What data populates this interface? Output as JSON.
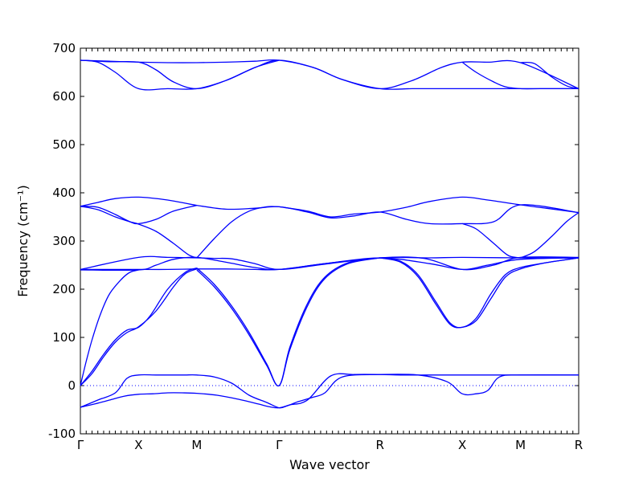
{
  "chart_data": {
    "type": "line",
    "title": "",
    "xlabel": "Wave vector",
    "ylabel": "Frequency (cm⁻¹)",
    "ylim": [
      -100,
      700
    ],
    "yticks": [
      -100,
      0,
      100,
      200,
      300,
      400,
      500,
      600,
      700
    ],
    "x_ticks": [
      {
        "label": "Γ",
        "pos": 0
      },
      {
        "label": "X",
        "pos": 1
      },
      {
        "label": "M",
        "pos": 2
      },
      {
        "label": "Γ",
        "pos": 3.414
      },
      {
        "label": "R",
        "pos": 5.146
      },
      {
        "label": "X",
        "pos": 6.56
      },
      {
        "label": "M",
        "pos": 7.56
      },
      {
        "label": "R",
        "pos": 8.56
      }
    ],
    "reference_line": {
      "y": 0,
      "style": "dotted"
    },
    "series_color": "#0000ff",
    "branches": [
      {
        "x": [
          0,
          0.25,
          0.5,
          0.75,
          1,
          1.25,
          1.5,
          1.75,
          2,
          2.35,
          2.7,
          3.05,
          3.25,
          3.414,
          3.6,
          3.9,
          4.3,
          4.7,
          5.146,
          5.5,
          6,
          6.3,
          6.56,
          6.8,
          7.05,
          7.25,
          7.56,
          7.8,
          8.1,
          8.35,
          8.56
        ],
        "y": [
          -45,
          -38,
          -30,
          -22,
          -18,
          -17,
          -15,
          -15,
          -16,
          -20,
          -28,
          -38,
          -44,
          -46,
          -40,
          -30,
          20,
          23,
          23,
          22,
          22,
          22,
          22,
          22,
          22,
          22,
          22,
          22,
          22,
          22,
          22
        ]
      },
      {
        "x": [
          0,
          0.3,
          0.6,
          0.8,
          1,
          1.3,
          1.6,
          1.8,
          2,
          2.3,
          2.6,
          2.9,
          3.2,
          3.414,
          3.55,
          3.75,
          4,
          4.2,
          4.5,
          5.146,
          5.8,
          6.3,
          6.56,
          6.8,
          7.0,
          7.2,
          7.56,
          8.56
        ],
        "y": [
          -45,
          -30,
          -15,
          15,
          22,
          22,
          22,
          22,
          22,
          18,
          5,
          -20,
          -35,
          -46,
          -42,
          -33,
          -24,
          -15,
          18,
          23,
          22,
          8,
          -17,
          -17,
          -10,
          18,
          22,
          22
        ]
      },
      {
        "x": [
          0,
          0.1,
          0.2,
          0.35,
          0.5,
          0.7,
          0.85,
          1
        ],
        "y": [
          0,
          50,
          95,
          150,
          190,
          220,
          235,
          240
        ]
      },
      {
        "x": [
          0,
          0.2,
          0.4,
          0.6,
          0.8,
          1,
          1.2,
          1.5,
          1.8,
          2
        ],
        "y": [
          0,
          30,
          65,
          95,
          115,
          121,
          145,
          200,
          235,
          244
        ]
      },
      {
        "x": [
          0,
          0.2,
          0.4,
          0.6,
          0.8,
          1,
          1.3,
          1.6,
          1.8,
          2
        ],
        "y": [
          0,
          25,
          60,
          90,
          110,
          122,
          155,
          205,
          232,
          242
        ]
      },
      {
        "x": [
          2,
          2.3,
          2.6,
          2.9,
          3.2,
          3.414,
          3.6,
          3.9,
          4.2,
          4.6,
          5.146
        ],
        "y": [
          244,
          210,
          165,
          110,
          45,
          0,
          80,
          170,
          225,
          255,
          265
        ]
      },
      {
        "x": [
          2,
          2.3,
          2.6,
          2.9,
          3.2,
          3.414,
          3.6,
          3.9,
          4.2,
          4.6,
          5.146
        ],
        "y": [
          240,
          205,
          160,
          105,
          42,
          0,
          75,
          165,
          222,
          253,
          265
        ]
      },
      {
        "x": [
          5.146,
          5.5,
          5.8,
          6.1,
          6.35,
          6.56,
          6.8,
          7.05,
          7.3,
          7.56,
          8.0,
          8.56
        ],
        "y": [
          265,
          258,
          230,
          175,
          130,
          121,
          140,
          190,
          230,
          245,
          255,
          265
        ]
      },
      {
        "x": [
          5.146,
          5.5,
          5.8,
          6.1,
          6.35,
          6.56,
          6.8,
          7.05,
          7.3,
          7.56,
          8.0,
          8.56
        ],
        "y": [
          265,
          256,
          226,
          170,
          127,
          121,
          135,
          180,
          225,
          242,
          255,
          265
        ]
      },
      {
        "x": [
          0,
          1,
          1.3,
          1.6,
          2,
          2.5,
          3,
          3.414,
          4.2,
          5.146,
          6,
          6.56,
          7.56,
          8.56
        ],
        "y": [
          240,
          240,
          250,
          262,
          266,
          256,
          245,
          241,
          253,
          265,
          265,
          266,
          265,
          265
        ]
      },
      {
        "x": [
          0,
          1,
          1.5,
          2,
          2.5,
          3,
          3.414,
          4.2,
          5.146,
          6,
          6.56,
          7,
          7.56,
          8.56
        ],
        "y": [
          241,
          241,
          241,
          242,
          242,
          241,
          241,
          253,
          265,
          253,
          241,
          250,
          262,
          265
        ]
      },
      {
        "x": [
          0,
          1,
          1.5,
          2,
          2.3,
          2.6,
          3,
          3.414,
          4.2,
          5.146,
          5.9,
          6.56,
          7.1,
          7.56,
          8.56
        ],
        "y": [
          241,
          266,
          266,
          265,
          264,
          263,
          253,
          241,
          252,
          265,
          264,
          241,
          250,
          266,
          266
        ]
      },
      {
        "x": [
          0,
          0.3,
          0.6,
          0.85,
          1,
          1.3,
          1.6,
          1.85,
          2
        ],
        "y": [
          372,
          365,
          350,
          340,
          335,
          320,
          295,
          272,
          265
        ]
      },
      {
        "x": [
          0,
          0.3,
          0.6,
          0.85,
          1,
          1.3,
          1.6,
          2
        ],
        "y": [
          372,
          370,
          355,
          340,
          336,
          345,
          362,
          374
        ]
      },
      {
        "x": [
          0,
          0.3,
          0.6,
          1,
          1.5,
          2,
          2.5,
          3,
          3.414,
          3.9,
          4.3,
          4.7,
          5.146,
          5.6,
          6,
          6.56,
          7.1,
          7.56,
          8.56
        ],
        "y": [
          372,
          380,
          388,
          391,
          385,
          374,
          366,
          368,
          371,
          360,
          348,
          352,
          360,
          345,
          336,
          336,
          340,
          375,
          359
        ]
      },
      {
        "x": [
          2,
          2.3,
          2.6,
          2.9,
          3.2,
          3.414
        ],
        "y": [
          265,
          305,
          340,
          362,
          371,
          371
        ]
      },
      {
        "x": [
          3.414,
          3.9,
          4.3,
          4.7,
          5.146,
          5.6,
          6,
          6.56,
          7,
          7.56,
          8,
          8.56
        ],
        "y": [
          371,
          362,
          350,
          356,
          360,
          370,
          382,
          391,
          385,
          375,
          368,
          359
        ]
      },
      {
        "x": [
          6.56,
          6.8,
          7.1,
          7.35,
          7.56
        ],
        "y": [
          336,
          325,
          295,
          270,
          265
        ]
      },
      {
        "x": [
          7.56,
          7.8,
          8.1,
          8.35,
          8.56
        ],
        "y": [
          265,
          278,
          310,
          340,
          359
        ]
      },
      {
        "x": [
          0,
          0.5,
          1,
          1.5,
          2,
          2.5,
          3,
          3.414,
          4,
          4.5,
          5.146,
          5.7,
          6.2,
          6.56,
          7.0,
          7.56,
          8.56
        ],
        "y": [
          675,
          673,
          671,
          670,
          670,
          671,
          673,
          675,
          660,
          635,
          616,
          633,
          660,
          671,
          671,
          670,
          616
        ]
      },
      {
        "x": [
          0,
          0.3,
          0.6,
          1,
          1.5,
          2,
          2.5,
          3,
          3.414,
          4,
          4.5,
          5.146,
          5.7,
          6.2,
          6.56,
          7,
          7.56,
          8.56
        ],
        "y": [
          675,
          671,
          650,
          616,
          616,
          616,
          633,
          660,
          675,
          660,
          635,
          616,
          616,
          616,
          616,
          616,
          616,
          616
        ]
      },
      {
        "x": [
          0,
          0.5,
          1,
          1.3,
          1.6,
          2,
          2.5,
          3,
          3.414
        ],
        "y": [
          675,
          672,
          671,
          655,
          630,
          616,
          633,
          660,
          675
        ]
      },
      {
        "x": [
          6.56,
          6.8,
          7.1,
          7.3,
          7.56,
          7.9,
          8.2,
          8.56
        ],
        "y": [
          671,
          650,
          630,
          620,
          616,
          616,
          616,
          616
        ]
      },
      {
        "x": [
          7.56,
          7.8,
          8.1,
          8.35,
          8.56
        ],
        "y": [
          670,
          668,
          640,
          622,
          616
        ]
      }
    ]
  }
}
